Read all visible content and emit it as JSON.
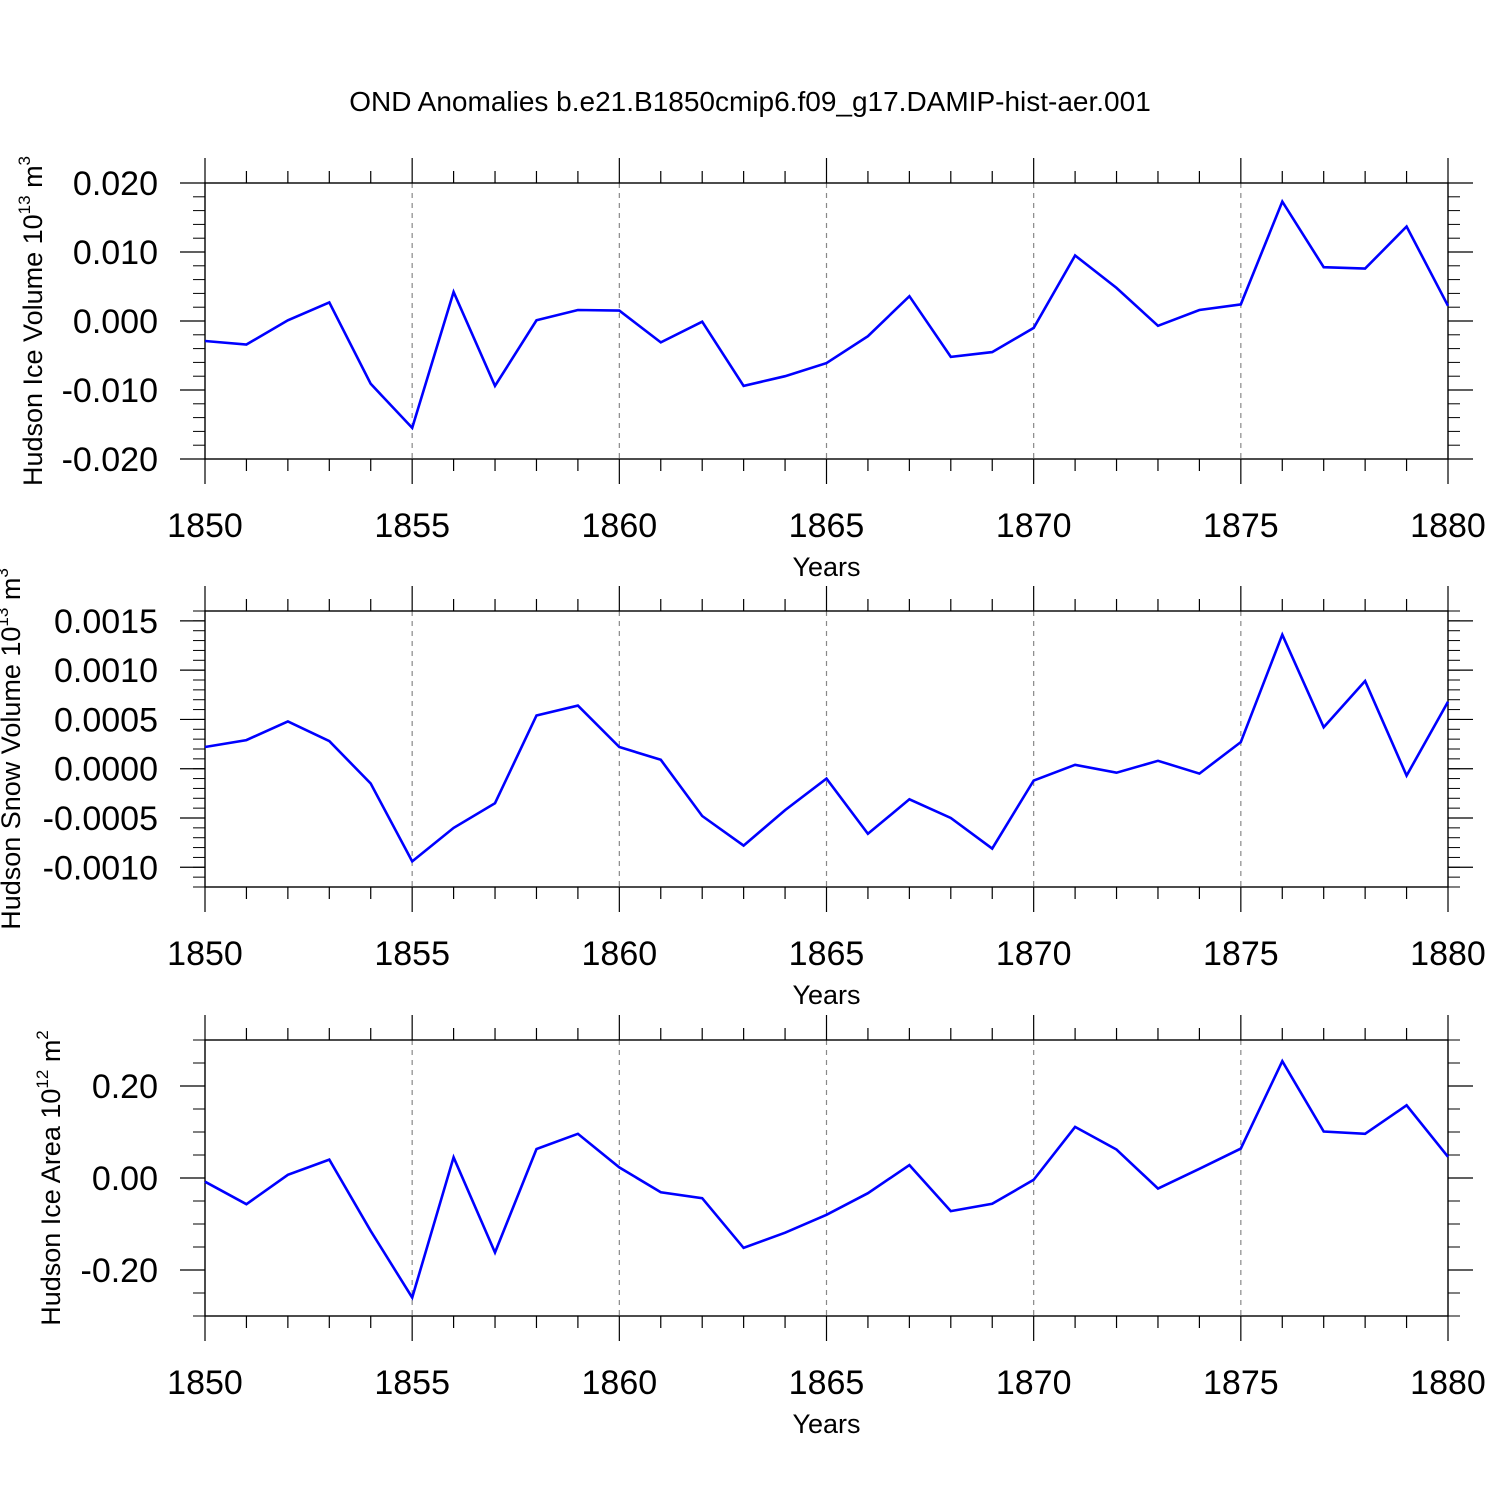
{
  "figure": {
    "title": "OND Anomalies b.e21.B1850cmip6.f09_g17.DAMIP-hist-aer.001"
  },
  "colors": {
    "series": "#0000ff",
    "axis": "#000000",
    "grid": "#888888"
  },
  "chart_data": [
    {
      "type": "line",
      "name": "ice-volume",
      "ylabel": "Hudson Ice Volume 10",
      "ylabel_exponent": "13",
      "ylabel_unit": "m",
      "ylabel_unit_exponent": "3",
      "xlabel": "Years",
      "xlim": [
        1850,
        1880
      ],
      "ylim": [
        -0.02,
        0.02
      ],
      "yticks": [
        -0.02,
        -0.01,
        0.0,
        0.01,
        0.02
      ],
      "ytick_labels": [
        "-0.020",
        "-0.010",
        "0.000",
        "0.010",
        "0.020"
      ],
      "yminor_step": 0.002,
      "xticks": [
        1850,
        1855,
        1860,
        1865,
        1870,
        1875,
        1880
      ],
      "xtick_labels": [
        "1850",
        "1855",
        "1860",
        "1865",
        "1870",
        "1875",
        "1880"
      ],
      "grid": "vertical dashed at major x ticks",
      "series": [
        {
          "name": "Hudson Ice Volume",
          "x": [
            1850,
            1851,
            1852,
            1853,
            1854,
            1855,
            1856,
            1857,
            1858,
            1859,
            1860,
            1861,
            1862,
            1863,
            1864,
            1865,
            1866,
            1867,
            1868,
            1869,
            1870,
            1871,
            1872,
            1873,
            1874,
            1875,
            1876,
            1877,
            1878,
            1879,
            1880
          ],
          "values": [
            -0.0029,
            -0.0034,
            0.0001,
            0.0027,
            -0.0091,
            -0.0155,
            0.0042,
            -0.0094,
            0.0001,
            0.0016,
            0.0015,
            -0.0031,
            -0.0001,
            -0.0094,
            -0.008,
            -0.0061,
            -0.0022,
            0.0036,
            -0.0052,
            -0.0045,
            -0.001,
            0.0095,
            0.0048,
            -0.0007,
            0.0016,
            0.0024,
            0.0173,
            0.0078,
            0.0076,
            0.0137,
            0.0022
          ]
        }
      ]
    },
    {
      "type": "line",
      "name": "snow-volume",
      "ylabel": "Hudson Snow Volume 10",
      "ylabel_exponent": "13",
      "ylabel_unit": "m",
      "ylabel_unit_exponent": "3",
      "xlabel": "Years",
      "xlim": [
        1850,
        1880
      ],
      "ylim": [
        -0.0012,
        0.0016
      ],
      "yticks": [
        -0.001,
        -0.0005,
        0.0,
        0.0005,
        0.001,
        0.0015
      ],
      "ytick_labels": [
        "-0.0010",
        "-0.0005",
        "0.0000",
        "0.0005",
        "0.0010",
        "0.0015"
      ],
      "yminor_step": 0.0001,
      "xticks": [
        1850,
        1855,
        1860,
        1865,
        1870,
        1875,
        1880
      ],
      "xtick_labels": [
        "1850",
        "1855",
        "1860",
        "1865",
        "1870",
        "1875",
        "1880"
      ],
      "grid": "vertical dashed at major x ticks",
      "series": [
        {
          "name": "Hudson Snow Volume",
          "x": [
            1850,
            1851,
            1852,
            1853,
            1854,
            1855,
            1856,
            1857,
            1858,
            1859,
            1860,
            1861,
            1862,
            1863,
            1864,
            1865,
            1866,
            1867,
            1868,
            1869,
            1870,
            1871,
            1872,
            1873,
            1874,
            1875,
            1876,
            1877,
            1878,
            1879,
            1880
          ],
          "values": [
            0.00022,
            0.00029,
            0.00048,
            0.00028,
            -0.00015,
            -0.00094,
            -0.0006,
            -0.00035,
            0.00054,
            0.00064,
            0.00022,
            9e-05,
            -0.00048,
            -0.00078,
            -0.00042,
            -0.0001,
            -0.00066,
            -0.00031,
            -0.0005,
            -0.00081,
            -0.00012,
            4e-05,
            -4e-05,
            8e-05,
            -5e-05,
            0.00027,
            0.00136,
            0.00042,
            0.00089,
            -7e-05,
            0.00068
          ]
        }
      ]
    },
    {
      "type": "line",
      "name": "ice-area",
      "ylabel": "Hudson Ice Area 10",
      "ylabel_exponent": "12",
      "ylabel_unit": "m",
      "ylabel_unit_exponent": "2",
      "xlabel": "Years",
      "xlim": [
        1850,
        1880
      ],
      "ylim": [
        -0.3,
        0.3
      ],
      "yticks": [
        -0.2,
        0.0,
        0.2
      ],
      "ytick_labels": [
        "-0.20",
        "0.00",
        "0.20"
      ],
      "yminor_step": 0.05,
      "xticks": [
        1850,
        1855,
        1860,
        1865,
        1870,
        1875,
        1880
      ],
      "xtick_labels": [
        "1850",
        "1855",
        "1860",
        "1865",
        "1870",
        "1875",
        "1880"
      ],
      "grid": "vertical dashed at major x ticks",
      "series": [
        {
          "name": "Hudson Ice Area",
          "x": [
            1850,
            1851,
            1852,
            1853,
            1854,
            1855,
            1856,
            1857,
            1858,
            1859,
            1860,
            1861,
            1862,
            1863,
            1864,
            1865,
            1866,
            1867,
            1868,
            1869,
            1870,
            1871,
            1872,
            1873,
            1874,
            1875,
            1876,
            1877,
            1878,
            1879,
            1880
          ],
          "values": [
            -0.008,
            -0.057,
            0.007,
            0.04,
            -0.115,
            -0.26,
            0.045,
            -0.162,
            0.063,
            0.096,
            0.023,
            -0.031,
            -0.044,
            -0.152,
            -0.119,
            -0.08,
            -0.033,
            0.028,
            -0.072,
            -0.056,
            -0.004,
            0.111,
            0.062,
            -0.023,
            0.02,
            0.064,
            0.254,
            0.101,
            0.096,
            0.158,
            0.046
          ]
        }
      ]
    }
  ]
}
